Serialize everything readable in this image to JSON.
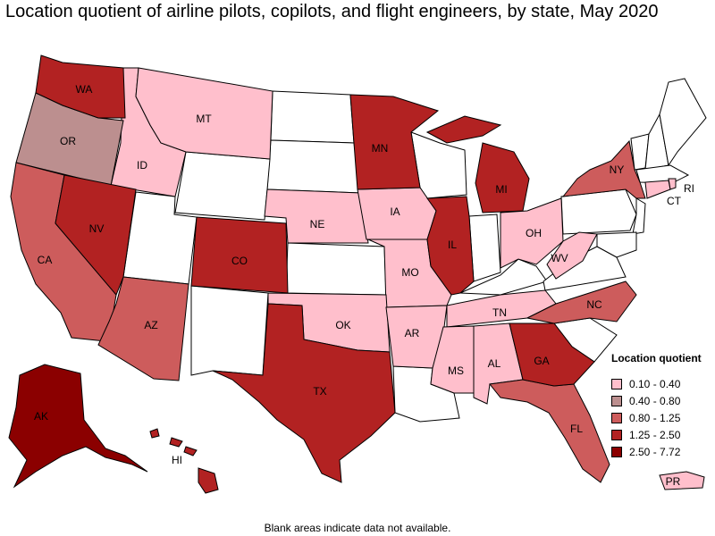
{
  "title": "Location quotient of airline pilots, copilots, and flight engineers, by state, May 2020",
  "footnote": "Blank areas indicate data not available.",
  "legend": {
    "title": "Location quotient",
    "bins": [
      {
        "label": "0.10 - 0.40",
        "color": "#ffbfcc"
      },
      {
        "label": "0.40 - 0.80",
        "color": "#bc8f8f"
      },
      {
        "label": "0.80 - 1.25",
        "color": "#cd5c5c"
      },
      {
        "label": "1.25 - 2.50",
        "color": "#b22222"
      },
      {
        "label": "2.50 - 7.72",
        "color": "#8b0000"
      }
    ]
  },
  "no_data_color": "#ffffff",
  "state_labels": [
    {
      "code": "WA",
      "bin": 3
    },
    {
      "code": "OR",
      "bin": 1
    },
    {
      "code": "CA",
      "bin": 2
    },
    {
      "code": "NV",
      "bin": 3
    },
    {
      "code": "ID",
      "bin": 0
    },
    {
      "code": "MT",
      "bin": 0
    },
    {
      "code": "AZ",
      "bin": 2
    },
    {
      "code": "CO",
      "bin": 3
    },
    {
      "code": "NE",
      "bin": 0
    },
    {
      "code": "TX",
      "bin": 3
    },
    {
      "code": "OK",
      "bin": 0
    },
    {
      "code": "MN",
      "bin": 3
    },
    {
      "code": "IA",
      "bin": 0
    },
    {
      "code": "MO",
      "bin": 0
    },
    {
      "code": "AR",
      "bin": 0
    },
    {
      "code": "IL",
      "bin": 3
    },
    {
      "code": "MI",
      "bin": 3
    },
    {
      "code": "OH",
      "bin": 0
    },
    {
      "code": "WV",
      "bin": 0
    },
    {
      "code": "TN",
      "bin": 0
    },
    {
      "code": "MS",
      "bin": 0
    },
    {
      "code": "AL",
      "bin": 0
    },
    {
      "code": "GA",
      "bin": 3
    },
    {
      "code": "FL",
      "bin": 2
    },
    {
      "code": "NC",
      "bin": 2
    },
    {
      "code": "NY",
      "bin": 2
    },
    {
      "code": "CT",
      "bin": 0
    },
    {
      "code": "RI",
      "bin": 0
    },
    {
      "code": "AK",
      "bin": 4
    },
    {
      "code": "HI",
      "bin": 3
    },
    {
      "code": "PR",
      "bin": 0
    }
  ]
}
